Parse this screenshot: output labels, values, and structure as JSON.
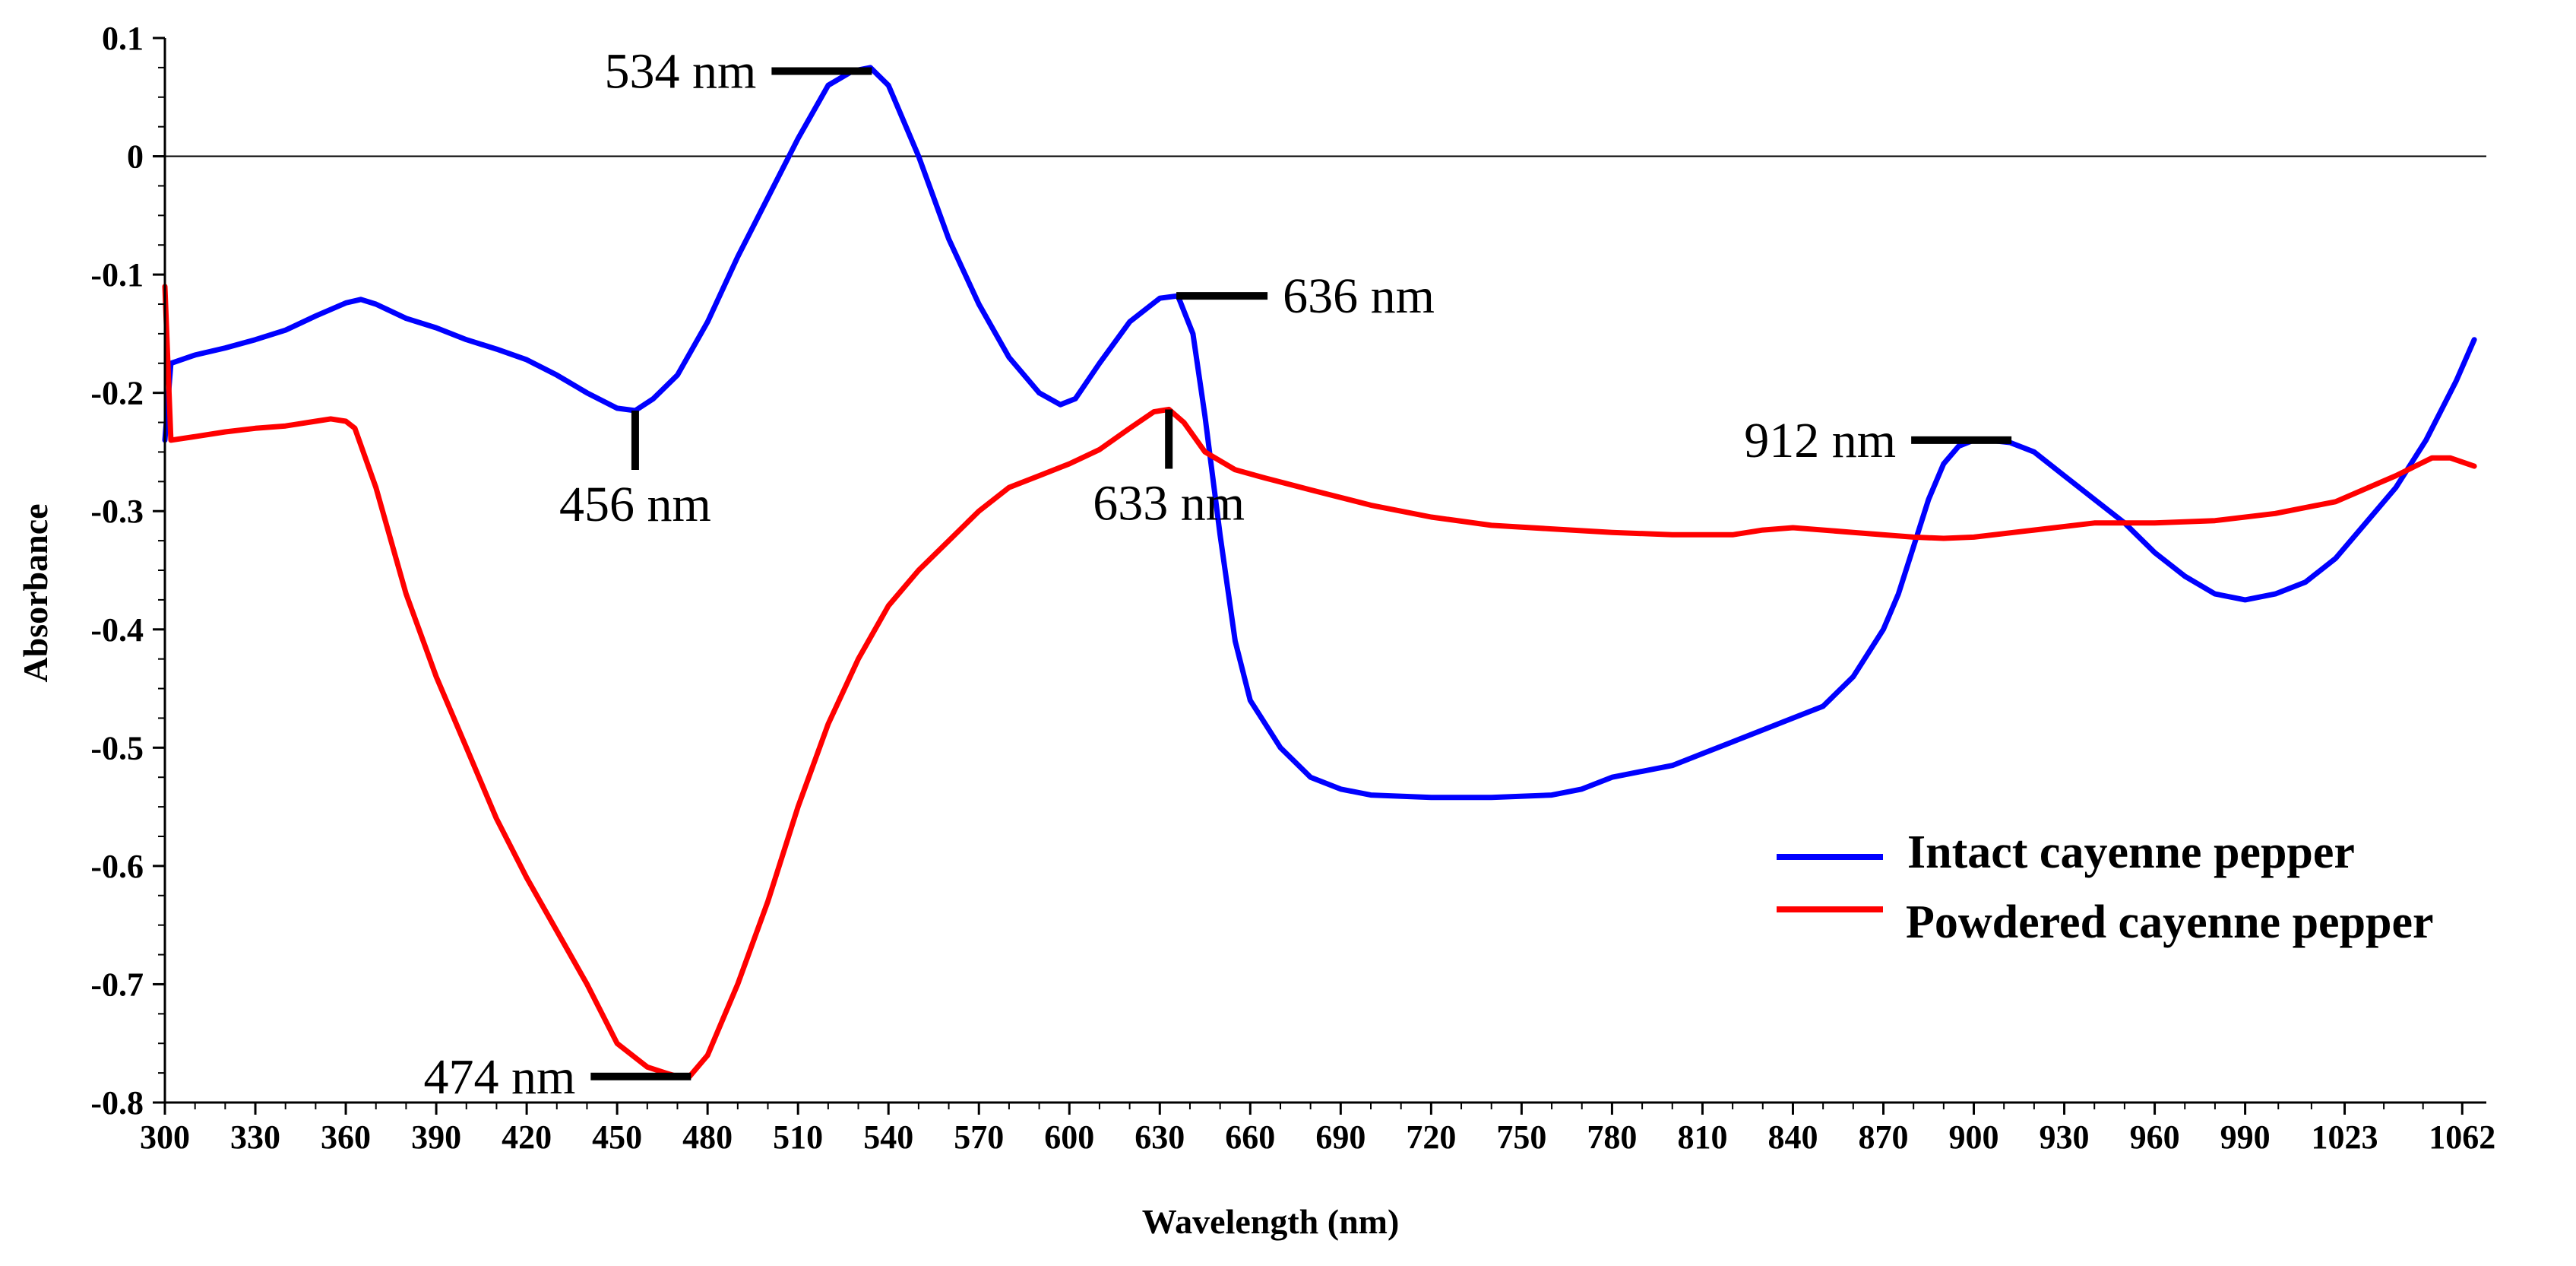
{
  "chart_data": {
    "type": "line",
    "title": "",
    "xlabel": "Wavelength (nm)",
    "ylabel": "Absorbance",
    "xlim": [
      300,
      1070
    ],
    "ylim": [
      -0.8,
      0.1
    ],
    "x_tick_values": [
      300,
      330,
      360,
      390,
      420,
      450,
      480,
      510,
      540,
      570,
      600,
      630,
      660,
      690,
      720,
      750,
      780,
      810,
      840,
      870,
      900,
      930,
      960,
      990,
      1023,
      1062
    ],
    "x_tick_labels": [
      "300",
      "330",
      "360",
      "390",
      "420",
      "450",
      "480",
      "510",
      "540",
      "570",
      "600",
      "630",
      "660",
      "690",
      "720",
      "750",
      "780",
      "810",
      "840",
      "870",
      "900",
      "930",
      "960",
      "990",
      "1023",
      "1062"
    ],
    "y_ticks": [
      {
        "value": 0.1,
        "label": "0.1"
      },
      {
        "value": 0,
        "label": "0"
      },
      {
        "value": -0.1,
        "label": "-0.1"
      },
      {
        "value": -0.2,
        "label": "-0.2"
      },
      {
        "value": -0.3,
        "label": "-0.3"
      },
      {
        "value": -0.4,
        "label": "-0.4"
      },
      {
        "value": -0.5,
        "label": "-0.5"
      },
      {
        "value": -0.6,
        "label": "-0.6"
      },
      {
        "value": -0.7,
        "label": "-0.7"
      },
      {
        "value": -0.8,
        "label": "-0.8"
      }
    ],
    "zero_line": true,
    "grid": false,
    "legend_position": "lower-right",
    "series": [
      {
        "name": "Intact cayenne pepper",
        "color": "#0000ff",
        "x": [
          300,
          302,
          310,
          320,
          330,
          340,
          350,
          360,
          365,
          370,
          380,
          390,
          400,
          410,
          420,
          430,
          440,
          450,
          456,
          462,
          470,
          480,
          490,
          500,
          510,
          520,
          528,
          534,
          540,
          550,
          560,
          570,
          580,
          590,
          597,
          602,
          610,
          620,
          630,
          636,
          641,
          645,
          650,
          655,
          660,
          670,
          680,
          690,
          700,
          720,
          740,
          760,
          770,
          780,
          790,
          800,
          810,
          820,
          830,
          840,
          850,
          860,
          870,
          875,
          880,
          885,
          890,
          895,
          900,
          905,
          912,
          920,
          930,
          940,
          950,
          960,
          970,
          980,
          990,
          1000,
          1010,
          1020,
          1030,
          1040,
          1050,
          1060,
          1066
        ],
        "y": [
          -0.24,
          -0.175,
          -0.168,
          -0.162,
          -0.155,
          -0.147,
          -0.135,
          -0.124,
          -0.121,
          -0.125,
          -0.137,
          -0.145,
          -0.155,
          -0.163,
          -0.172,
          -0.185,
          -0.2,
          -0.213,
          -0.215,
          -0.205,
          -0.185,
          -0.14,
          -0.085,
          -0.035,
          0.015,
          0.06,
          0.072,
          0.075,
          0.06,
          0.0,
          -0.07,
          -0.125,
          -0.17,
          -0.2,
          -0.21,
          -0.205,
          -0.175,
          -0.14,
          -0.12,
          -0.118,
          -0.15,
          -0.22,
          -0.32,
          -0.41,
          -0.46,
          -0.5,
          -0.525,
          -0.535,
          -0.54,
          -0.542,
          -0.542,
          -0.54,
          -0.535,
          -0.525,
          -0.52,
          -0.515,
          -0.505,
          -0.495,
          -0.485,
          -0.475,
          -0.465,
          -0.44,
          -0.4,
          -0.37,
          -0.33,
          -0.29,
          -0.26,
          -0.245,
          -0.24,
          -0.24,
          -0.242,
          -0.25,
          -0.27,
          -0.29,
          -0.31,
          -0.335,
          -0.355,
          -0.37,
          -0.375,
          -0.37,
          -0.36,
          -0.34,
          -0.31,
          -0.28,
          -0.24,
          -0.19,
          -0.155
        ]
      },
      {
        "name": "Powdered cayenne pepper",
        "color": "#ff0000",
        "x": [
          300,
          302,
          310,
          320,
          330,
          340,
          350,
          355,
          360,
          363,
          370,
          380,
          390,
          400,
          410,
          420,
          430,
          440,
          450,
          460,
          466,
          470,
          474,
          480,
          490,
          500,
          510,
          520,
          530,
          540,
          550,
          560,
          570,
          580,
          590,
          600,
          610,
          620,
          628,
          633,
          638,
          645,
          655,
          665,
          680,
          700,
          720,
          740,
          760,
          780,
          800,
          820,
          830,
          840,
          860,
          880,
          890,
          900,
          920,
          940,
          960,
          980,
          1000,
          1020,
          1040,
          1052,
          1058,
          1066
        ],
        "y": [
          -0.11,
          -0.24,
          -0.237,
          -0.233,
          -0.23,
          -0.228,
          -0.224,
          -0.222,
          -0.224,
          -0.23,
          -0.28,
          -0.37,
          -0.44,
          -0.5,
          -0.56,
          -0.61,
          -0.655,
          -0.7,
          -0.75,
          -0.77,
          -0.775,
          -0.778,
          -0.778,
          -0.76,
          -0.7,
          -0.63,
          -0.55,
          -0.48,
          -0.425,
          -0.38,
          -0.35,
          -0.325,
          -0.3,
          -0.28,
          -0.27,
          -0.26,
          -0.248,
          -0.23,
          -0.216,
          -0.214,
          -0.225,
          -0.25,
          -0.265,
          -0.272,
          -0.282,
          -0.295,
          -0.305,
          -0.312,
          -0.315,
          -0.318,
          -0.32,
          -0.32,
          -0.316,
          -0.314,
          -0.318,
          -0.322,
          -0.323,
          -0.322,
          -0.316,
          -0.31,
          -0.31,
          -0.308,
          -0.302,
          -0.292,
          -0.27,
          -0.255,
          -0.255,
          -0.262
        ]
      }
    ],
    "annotations": [
      {
        "text": "534 nm",
        "x": 534,
        "y": 0.072,
        "style": "horizontal-left"
      },
      {
        "text": "636 nm",
        "x": 636,
        "y": -0.118,
        "style": "horizontal-right"
      },
      {
        "text": "456 nm",
        "x": 456,
        "y": -0.215,
        "style": "vertical-down"
      },
      {
        "text": "633 nm",
        "x": 633,
        "y": -0.214,
        "style": "vertical-down"
      },
      {
        "text": "912 nm",
        "x": 912,
        "y": -0.24,
        "style": "horizontal-left"
      },
      {
        "text": "474 nm",
        "x": 474,
        "y": -0.778,
        "style": "horizontal-left"
      }
    ]
  }
}
